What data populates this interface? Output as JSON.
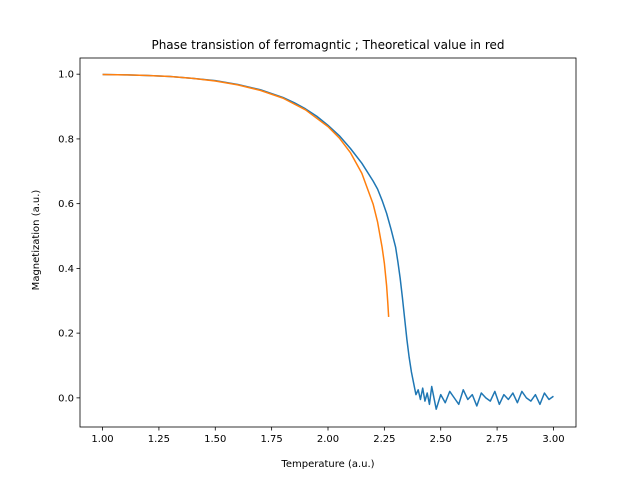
{
  "chart_data": {
    "type": "line",
    "title": "Phase transistion of ferromagntic ; Theoretical value in red",
    "xlabel": "Temperature (a.u.)",
    "ylabel": "Magnetization (a.u.)",
    "xlim": [
      0.9,
      3.1
    ],
    "ylim": [
      -0.09,
      1.05
    ],
    "xticks": [
      1.0,
      1.25,
      1.5,
      1.75,
      2.0,
      2.25,
      2.5,
      2.75,
      3.0
    ],
    "xtick_labels": [
      "1.00",
      "1.25",
      "1.50",
      "1.75",
      "2.00",
      "2.25",
      "2.50",
      "2.75",
      "3.00"
    ],
    "yticks": [
      0.0,
      0.2,
      0.4,
      0.6,
      0.8,
      1.0
    ],
    "ytick_labels": [
      "0.0",
      "0.2",
      "0.4",
      "0.6",
      "0.8",
      "1.0"
    ],
    "grid": false,
    "series": [
      {
        "color": "#1f77b4",
        "x": [
          1.0,
          1.1,
          1.2,
          1.3,
          1.4,
          1.5,
          1.6,
          1.7,
          1.8,
          1.85,
          1.9,
          1.95,
          2.0,
          2.05,
          2.1,
          2.15,
          2.2,
          2.22,
          2.24,
          2.26,
          2.28,
          2.3,
          2.31,
          2.32,
          2.33,
          2.34,
          2.35,
          2.36,
          2.37,
          2.38,
          2.39,
          2.4,
          2.41,
          2.42,
          2.43,
          2.44,
          2.45,
          2.46,
          2.47,
          2.48,
          2.5,
          2.52,
          2.54,
          2.56,
          2.58,
          2.6,
          2.62,
          2.64,
          2.66,
          2.68,
          2.7,
          2.72,
          2.74,
          2.76,
          2.78,
          2.8,
          2.82,
          2.84,
          2.86,
          2.88,
          2.9,
          2.92,
          2.94,
          2.96,
          2.98,
          3.0
        ],
        "y": [
          0.999,
          0.998,
          0.996,
          0.993,
          0.987,
          0.98,
          0.968,
          0.952,
          0.928,
          0.912,
          0.893,
          0.87,
          0.842,
          0.81,
          0.77,
          0.725,
          0.67,
          0.645,
          0.61,
          0.57,
          0.52,
          0.465,
          0.42,
          0.37,
          0.31,
          0.245,
          0.18,
          0.125,
          0.08,
          0.045,
          0.01,
          0.025,
          -0.005,
          0.03,
          -0.01,
          0.015,
          -0.02,
          0.035,
          0.0,
          -0.035,
          0.01,
          -0.015,
          0.02,
          0.0,
          -0.02,
          0.025,
          -0.005,
          0.01,
          -0.025,
          0.015,
          0.0,
          -0.01,
          0.02,
          -0.02,
          0.01,
          -0.005,
          0.015,
          -0.015,
          0.02,
          0.0,
          -0.01,
          0.01,
          -0.02,
          0.015,
          -0.005,
          0.005
        ]
      },
      {
        "color": "#ff7f0e",
        "x": [
          1.0,
          1.1,
          1.2,
          1.3,
          1.4,
          1.5,
          1.6,
          1.7,
          1.8,
          1.9,
          2.0,
          2.05,
          2.1,
          2.15,
          2.2,
          2.22,
          2.24,
          2.25,
          2.26,
          2.265,
          2.269
        ],
        "y": [
          0.999,
          0.998,
          0.996,
          0.993,
          0.987,
          0.979,
          0.967,
          0.95,
          0.926,
          0.89,
          0.838,
          0.803,
          0.757,
          0.694,
          0.599,
          0.543,
          0.465,
          0.416,
          0.346,
          0.296,
          0.25
        ]
      }
    ]
  }
}
